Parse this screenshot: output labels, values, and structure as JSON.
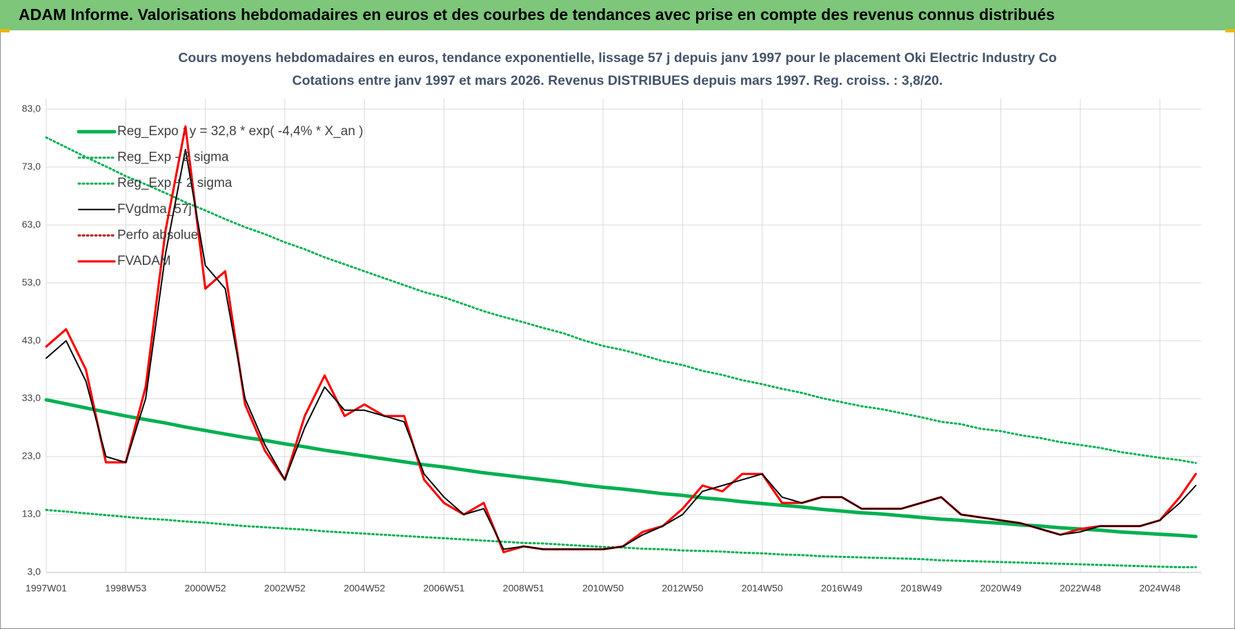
{
  "header": {
    "title": "ADAM Informe. Valorisations hebdomadaires en euros et des courbes de tendances avec prise en compte des revenus connus distribués"
  },
  "chart_data": {
    "type": "line",
    "title": "Cours moyens hebdomadaires en euros, tendance exponentielle, lissage 57 j depuis janv 1997  pour le  placement Oki Electric Industry Co",
    "subtitle": "Cotations entre janv 1997 et mars 2026. Revenus DISTRIBUES depuis mars 1997.  Reg. croiss. : 3,8/20.",
    "x": [
      0,
      26,
      52,
      78,
      104,
      130,
      156,
      182,
      208,
      234,
      260,
      286,
      312,
      338,
      364,
      390,
      416,
      442,
      468,
      494,
      520,
      546,
      572,
      598,
      624,
      650,
      676,
      702,
      728,
      754,
      780,
      806,
      832,
      858,
      884,
      910,
      936,
      962,
      988,
      1014,
      1040,
      1066,
      1092,
      1118,
      1144,
      1170,
      1196,
      1222,
      1248,
      1274,
      1300,
      1326,
      1352,
      1378,
      1404,
      1430,
      1456,
      1482,
      1503
    ],
    "xlim": [
      0,
      1510
    ],
    "xticks": [
      {
        "value": 0,
        "label": "1997W01"
      },
      {
        "value": 104,
        "label": "1998W53"
      },
      {
        "value": 208,
        "label": "2000W52"
      },
      {
        "value": 312,
        "label": "2002W52"
      },
      {
        "value": 416,
        "label": "2004W52"
      },
      {
        "value": 520,
        "label": "2006W51"
      },
      {
        "value": 624,
        "label": "2008W51"
      },
      {
        "value": 728,
        "label": "2010W50"
      },
      {
        "value": 832,
        "label": "2012W50"
      },
      {
        "value": 936,
        "label": "2014W50"
      },
      {
        "value": 1040,
        "label": "2016W49"
      },
      {
        "value": 1144,
        "label": "2018W49"
      },
      {
        "value": 1248,
        "label": "2020W49"
      },
      {
        "value": 1352,
        "label": "2022W48"
      },
      {
        "value": 1456,
        "label": "2024W48"
      }
    ],
    "ylim": [
      3,
      84.8
    ],
    "yticks": [
      {
        "value": 3,
        "label": "3,0"
      },
      {
        "value": 13,
        "label": "13,0"
      },
      {
        "value": 23,
        "label": "23,0"
      },
      {
        "value": 33,
        "label": "33,0"
      },
      {
        "value": 43,
        "label": "43,0"
      },
      {
        "value": 53,
        "label": "53,0"
      },
      {
        "value": 63,
        "label": "63,0"
      },
      {
        "value": 73,
        "label": "73,0"
      },
      {
        "value": 83,
        "label": "83,0"
      }
    ],
    "grid": true,
    "legend": "top-left",
    "series": [
      {
        "name": "Reg_Expo : y = 32,8 * exp( -4,4% *  X_an )",
        "color": "#00b050",
        "style": "thick",
        "values": [
          32.8,
          32.1,
          31.4,
          30.7,
          30.0,
          29.4,
          28.8,
          28.1,
          27.5,
          26.9,
          26.3,
          25.8,
          25.2,
          24.7,
          24.1,
          23.6,
          23.1,
          22.6,
          22.1,
          21.6,
          21.2,
          20.7,
          20.2,
          19.8,
          19.4,
          19.0,
          18.6,
          18.1,
          17.7,
          17.4,
          17.0,
          16.6,
          16.3,
          15.9,
          15.6,
          15.2,
          14.9,
          14.6,
          14.3,
          13.9,
          13.6,
          13.3,
          13.1,
          12.8,
          12.5,
          12.2,
          12.0,
          11.7,
          11.5,
          11.2,
          11.0,
          10.7,
          10.5,
          10.3,
          10.0,
          9.8,
          9.6,
          9.4,
          9.2
        ]
      },
      {
        "name": "Reg_Exp - 2 sigma",
        "color": "#00b050",
        "style": "dotted",
        "values": [
          13.8,
          13.5,
          13.2,
          12.9,
          12.6,
          12.3,
          12.1,
          11.8,
          11.6,
          11.3,
          11.0,
          10.8,
          10.6,
          10.4,
          10.1,
          9.9,
          9.7,
          9.5,
          9.3,
          9.1,
          8.9,
          8.7,
          8.5,
          8.3,
          8.1,
          8.0,
          7.8,
          7.6,
          7.4,
          7.3,
          7.1,
          7.0,
          6.8,
          6.7,
          6.6,
          6.4,
          6.3,
          6.1,
          6.0,
          5.8,
          5.7,
          5.6,
          5.5,
          5.4,
          5.3,
          5.1,
          5.0,
          4.9,
          4.8,
          4.7,
          4.6,
          4.5,
          4.4,
          4.3,
          4.2,
          4.1,
          4.0,
          3.9,
          3.9
        ]
      },
      {
        "name": "Reg_Exp + 2 sigma",
        "color": "#00b050",
        "style": "dotted",
        "values": [
          78.1,
          76.4,
          74.7,
          73.1,
          71.4,
          70.0,
          68.5,
          66.9,
          65.5,
          64.0,
          62.6,
          61.4,
          60.0,
          58.8,
          57.4,
          56.2,
          55.0,
          53.8,
          52.6,
          51.4,
          50.5,
          49.3,
          48.1,
          47.1,
          46.2,
          45.2,
          44.3,
          43.1,
          42.1,
          41.4,
          40.5,
          39.5,
          38.8,
          37.8,
          37.1,
          36.2,
          35.5,
          34.7,
          34.0,
          33.1,
          32.4,
          31.7,
          31.2,
          30.5,
          29.8,
          29.0,
          28.6,
          27.8,
          27.4,
          26.7,
          26.2,
          25.5,
          25.0,
          24.5,
          23.8,
          23.3,
          22.8,
          22.4,
          21.9
        ]
      },
      {
        "name": "FVgdma_57j",
        "color": "#000000",
        "style": "solid",
        "values": [
          40,
          43,
          36,
          23,
          22,
          33,
          58,
          76,
          56,
          52,
          33,
          25,
          19,
          28,
          35,
          31,
          31,
          30,
          29,
          20,
          16,
          13,
          14,
          7,
          7.5,
          7,
          7,
          7,
          7,
          7.5,
          9.5,
          11,
          13,
          17,
          18,
          19,
          20,
          16,
          15,
          16,
          16,
          14,
          14,
          14,
          15,
          16,
          13,
          12.5,
          12,
          11.5,
          10.5,
          9.5,
          10,
          11,
          11,
          11,
          12,
          15,
          18
        ]
      },
      {
        "name": "Perfo absolue",
        "color": "#c00000",
        "style": "dotted",
        "values": [
          null,
          null,
          null,
          null,
          null,
          null,
          null,
          null,
          null,
          null,
          null,
          null,
          null,
          null,
          null,
          null,
          null,
          null,
          null,
          null,
          null,
          null,
          null,
          null,
          null,
          null,
          null,
          null,
          null,
          null,
          null,
          null,
          null,
          null,
          null,
          null,
          null,
          null,
          null,
          null,
          null,
          null,
          null,
          null,
          null,
          null,
          null,
          null,
          null,
          null,
          null,
          null,
          null,
          null,
          null,
          null,
          null,
          null,
          null
        ]
      },
      {
        "name": "FVADAM",
        "color": "#ff0000",
        "style": "red",
        "values": [
          42,
          45,
          38,
          22,
          22,
          35,
          62,
          80,
          52,
          55,
          32,
          24,
          19,
          30,
          37,
          30,
          32,
          30,
          30,
          19,
          15,
          13,
          15,
          6.5,
          7.5,
          7,
          7,
          7,
          7,
          7.5,
          10,
          11,
          14,
          18,
          17,
          20,
          20,
          15,
          15,
          16,
          16,
          14,
          14,
          14,
          15,
          16,
          13,
          12.5,
          12,
          11.5,
          10.5,
          9.5,
          10.5,
          11,
          11,
          11,
          12,
          16,
          20
        ]
      }
    ]
  }
}
